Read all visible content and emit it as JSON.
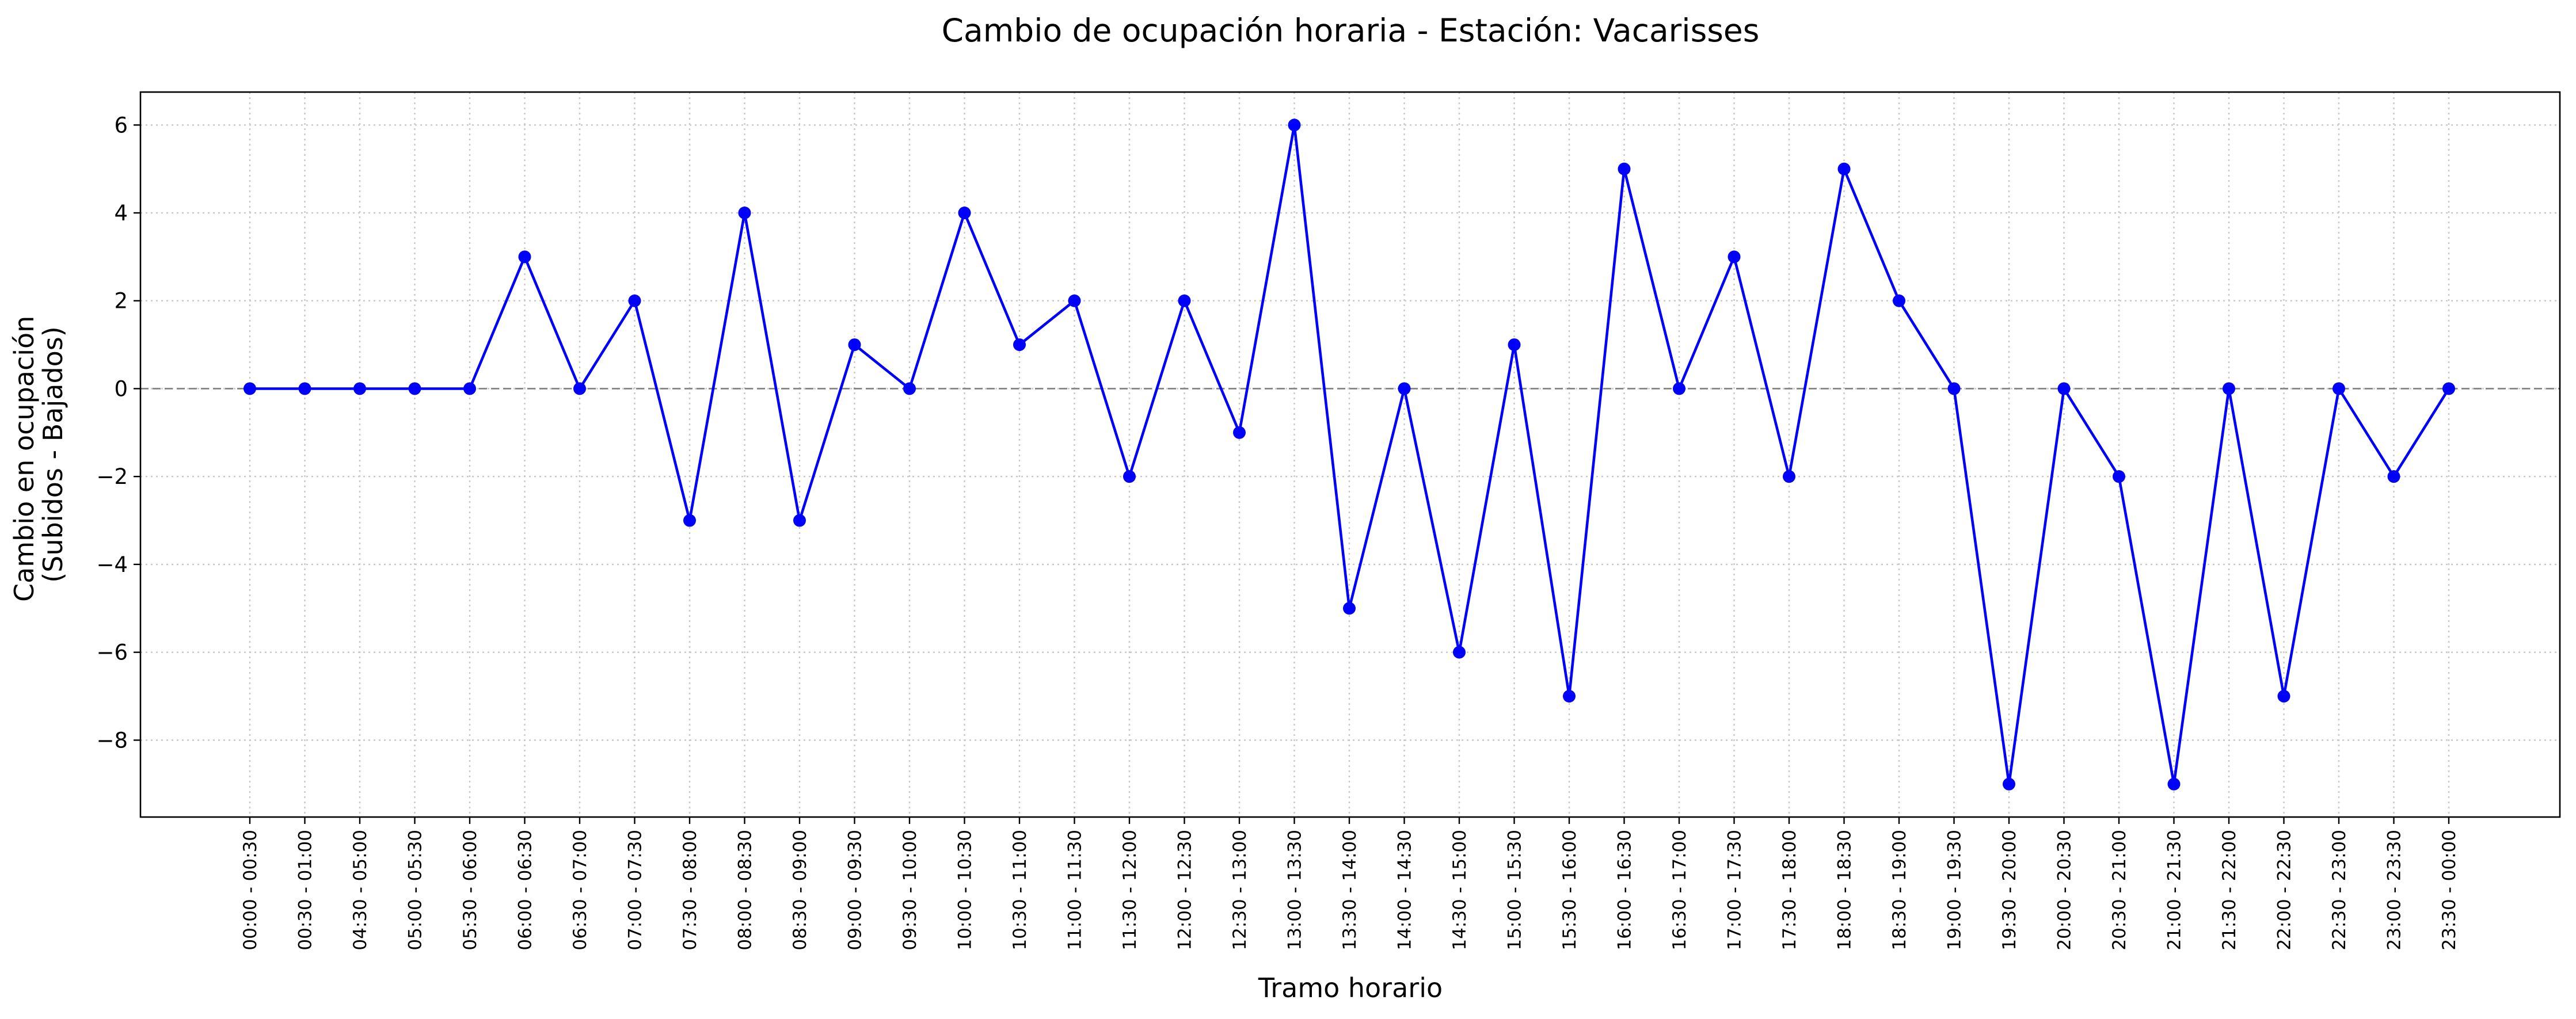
{
  "chart_data": {
    "type": "line",
    "title": "Cambio de ocupación horaria - Estación: Vacarisses",
    "xlabel": "Tramo horario",
    "ylabel_lines": [
      "Cambio en ocupación",
      "(Subidos - Bajados)"
    ],
    "categories": [
      "00:00 - 00:30",
      "00:30 - 01:00",
      "04:30 - 05:00",
      "05:00 - 05:30",
      "05:30 - 06:00",
      "06:00 - 06:30",
      "06:30 - 07:00",
      "07:00 - 07:30",
      "07:30 - 08:00",
      "08:00 - 08:30",
      "08:30 - 09:00",
      "09:00 - 09:30",
      "09:30 - 10:00",
      "10:00 - 10:30",
      "10:30 - 11:00",
      "11:00 - 11:30",
      "11:30 - 12:00",
      "12:00 - 12:30",
      "12:30 - 13:00",
      "13:00 - 13:30",
      "13:30 - 14:00",
      "14:00 - 14:30",
      "14:30 - 15:00",
      "15:00 - 15:30",
      "15:30 - 16:00",
      "16:00 - 16:30",
      "16:30 - 17:00",
      "17:00 - 17:30",
      "17:30 - 18:00",
      "18:00 - 18:30",
      "18:30 - 19:00",
      "19:00 - 19:30",
      "19:30 - 20:00",
      "20:00 - 20:30",
      "20:30 - 21:00",
      "21:00 - 21:30",
      "21:30 - 22:00",
      "22:00 - 22:30",
      "22:30 - 23:00",
      "23:00 - 23:30",
      "23:30 - 00:00"
    ],
    "series": [
      {
        "values": [
          0,
          0,
          0,
          0,
          0,
          3,
          0,
          2,
          -3,
          4,
          -3,
          1,
          0,
          4,
          1,
          2,
          -2,
          2,
          -1,
          6,
          -5,
          0,
          -6,
          1,
          -7,
          5,
          0,
          3,
          -2,
          5,
          2,
          0,
          -9,
          0,
          -2,
          -9,
          0,
          -7,
          0,
          -2,
          0
        ]
      }
    ],
    "yticks": [
      -8,
      -6,
      -4,
      -2,
      0,
      2,
      4,
      6
    ],
    "ytick_labels": [
      "−8",
      "−6",
      "−4",
      "−2",
      "0",
      "2",
      "4",
      "6"
    ],
    "ylim": [
      -9.75,
      6.75
    ],
    "reference_line": 0,
    "grid": true,
    "marker": "circle",
    "colors": {
      "line": "#0000ff",
      "grid": "#c8c8c8",
      "reference_line": "#808080",
      "frame": "#000000"
    }
  }
}
